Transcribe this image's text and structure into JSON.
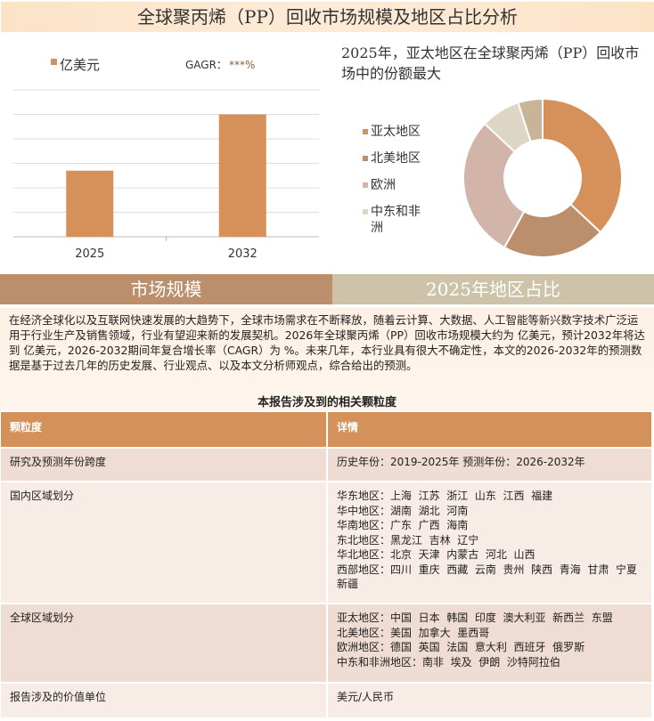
{
  "title": "全球聚丙烯（PP）回收市场规模及地区占比分析",
  "bar_chart": {
    "legend_label": "亿美元",
    "cagr_label": "GAGR：",
    "cagr_value": "***%",
    "color": "#d59159"
  },
  "pie_title": "2025年，亚太地区在全球聚丙烯（PP）回收市场中的份额最大",
  "chart_data": [
    {
      "type": "bar",
      "categories": [
        "2025",
        "2032"
      ],
      "values": [
        2.7,
        5.0
      ],
      "ylim": [
        0,
        6
      ],
      "grid": true,
      "legend": "top-left",
      "series": [
        {
          "name": "亿美元",
          "values": [
            2.7,
            5.0
          ]
        }
      ]
    },
    {
      "type": "pie",
      "donut": true,
      "labels": [
        "亚太地区",
        "北美地区",
        "欧洲",
        "中东和非洲",
        ""
      ],
      "values": [
        37,
        21,
        29,
        8,
        5
      ],
      "colors": [
        "#d59159",
        "#bb8f6c",
        "#d3b4a8",
        "#ddd6c4",
        "#c8b497"
      ],
      "legend": "left"
    }
  ],
  "sections": {
    "left": "市场规模",
    "right": "2025年地区占比"
  },
  "paragraph": "在经济全球化以及互联网快速发展的大趋势下，全球市场需求在不断释放，随着云计算、大数据、人工智能等新兴数字技术广泛运用于行业生产及销售领域，行业有望迎来新的发展契机。2026年全球聚丙烯（PP）回收市场规模大约为 亿美元，预计2032年将达到 亿美元，2026-2032期间年复合增长率（CAGR）为 %。未来几年，本行业具有很大不确定性，本文的2026-2032年的预测数据是基于过去几年的历史发展、行业观点、以及本文分析师观点，综合给出的预测。",
  "table": {
    "caption": "本报告涉及到的相关颗粒度",
    "headers": [
      "颗粒度",
      "详情"
    ],
    "rows": [
      {
        "label": "研究及预测年份跨度",
        "lines": [
          "历史年份：2019-2025年 预测年份：2026-2032年"
        ]
      },
      {
        "label": "国内区域划分",
        "lines": [
          "华东地区：上海  江苏  浙江  山东  江西  福建",
          "华中地区：湖南  湖北  河南",
          "华南地区：广东  广西  海南",
          "东北地区：黑龙江  吉林  辽宁",
          "华北地区：北京  天津  内蒙古  河北  山西",
          "西部地区：四川  重庆  西藏  云南  贵州  陕西  青海  甘肃  宁夏  新疆"
        ]
      },
      {
        "label": "全球区域划分",
        "lines": [
          "亚太地区：中国  日本  韩国  印度  澳大利亚  新西兰  东盟",
          "北美地区：美国  加拿大  墨西哥",
          "欧洲地区：德国  英国  法国  意大利  西班牙  俄罗斯",
          "中东和非洲地区：南非  埃及  伊朗  沙特阿拉伯"
        ]
      },
      {
        "label": "报告涉及的价值单位",
        "lines": [
          "美元/人民币"
        ]
      }
    ]
  }
}
